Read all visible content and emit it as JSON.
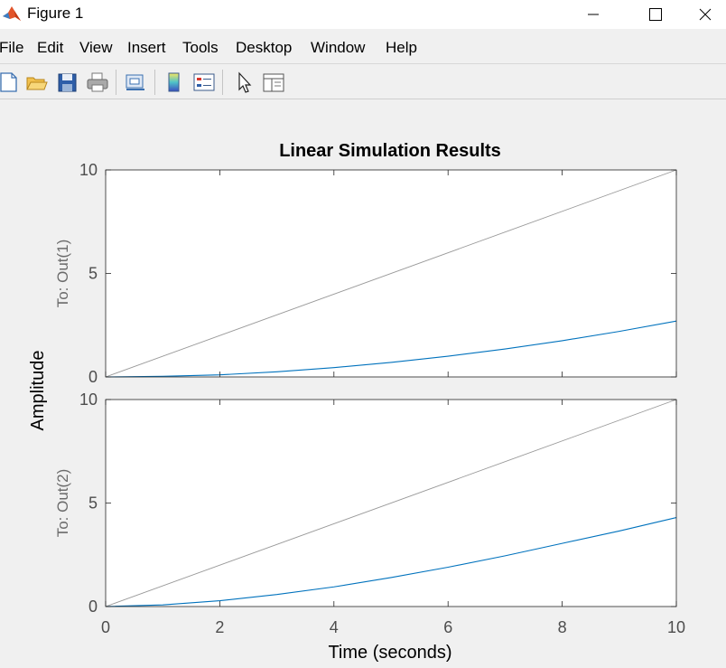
{
  "window": {
    "title": "Figure 1"
  },
  "menu": [
    "File",
    "Edit",
    "View",
    "Insert",
    "Tools",
    "Desktop",
    "Window",
    "Help"
  ],
  "toolbar_icons": [
    "new-figure-icon",
    "open-file-icon",
    "save-icon",
    "print-icon",
    "link-plot-icon",
    "colorbar-icon",
    "legend-icon",
    "pointer-icon",
    "property-editor-icon"
  ],
  "chart_data": {
    "type": "line",
    "title": "Linear Simulation Results",
    "xlabel": "Time (seconds)",
    "ylabel": "Amplitude",
    "xlim": [
      0,
      10
    ],
    "xticks": [
      "0",
      "2",
      "4",
      "6",
      "8",
      "10"
    ],
    "grid": false,
    "subplots": [
      {
        "ylabel": "To: Out(1)",
        "ylim": [
          0,
          10
        ],
        "yticks": [
          "0",
          "5",
          "10"
        ],
        "series": [
          {
            "role": "input",
            "color": "#999999",
            "x": [
              0,
              10
            ],
            "y": [
              0,
              10
            ]
          },
          {
            "role": "response",
            "color": "#0072bd",
            "x": [
              0,
              1,
              2,
              3,
              4,
              5,
              6,
              7,
              8,
              9,
              10
            ],
            "y": [
              0,
              0.03,
              0.1,
              0.25,
              0.45,
              0.7,
              1.0,
              1.35,
              1.75,
              2.2,
              2.7
            ]
          }
        ]
      },
      {
        "ylabel": "To: Out(2)",
        "ylim": [
          0,
          10
        ],
        "yticks": [
          "0",
          "5",
          "10"
        ],
        "series": [
          {
            "role": "input",
            "color": "#999999",
            "x": [
              0,
              10
            ],
            "y": [
              0,
              10
            ]
          },
          {
            "role": "response",
            "color": "#0072bd",
            "x": [
              0,
              1,
              2,
              3,
              4,
              5,
              6,
              7,
              8,
              9,
              10
            ],
            "y": [
              0,
              0.08,
              0.28,
              0.58,
              0.95,
              1.4,
              1.9,
              2.45,
              3.05,
              3.65,
              4.3
            ]
          }
        ]
      }
    ]
  }
}
